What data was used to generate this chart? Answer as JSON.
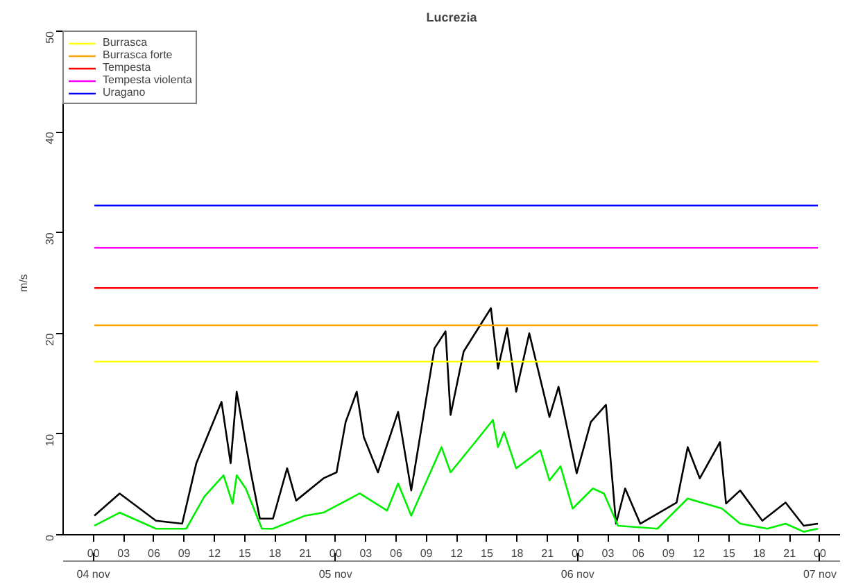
{
  "chart_data": {
    "type": "line",
    "title": "Lucrezia",
    "ylabel": "m/s",
    "xlim": [
      -3,
      74
    ],
    "ylim": [
      0,
      50
    ],
    "xticks": [
      {
        "value": 0,
        "label": "00"
      },
      {
        "value": 3,
        "label": "03"
      },
      {
        "value": 6,
        "label": "06"
      },
      {
        "value": 9,
        "label": "09"
      },
      {
        "value": 12,
        "label": "12"
      },
      {
        "value": 15,
        "label": "15"
      },
      {
        "value": 18,
        "label": "18"
      },
      {
        "value": 21,
        "label": "21"
      },
      {
        "value": 24,
        "label": "00"
      },
      {
        "value": 27,
        "label": "03"
      },
      {
        "value": 30,
        "label": "06"
      },
      {
        "value": 33,
        "label": "09"
      },
      {
        "value": 36,
        "label": "12"
      },
      {
        "value": 39,
        "label": "15"
      },
      {
        "value": 42,
        "label": "18"
      },
      {
        "value": 45,
        "label": "21"
      },
      {
        "value": 48,
        "label": "00"
      },
      {
        "value": 51,
        "label": "03"
      },
      {
        "value": 54,
        "label": "06"
      },
      {
        "value": 57,
        "label": "09"
      },
      {
        "value": 60,
        "label": "12"
      },
      {
        "value": 63,
        "label": "15"
      },
      {
        "value": 66,
        "label": "18"
      },
      {
        "value": 69,
        "label": "21"
      },
      {
        "value": 72,
        "label": "00"
      }
    ],
    "annotations": [
      "04 nov",
      "05 nov",
      "06 nov",
      "07 nov"
    ],
    "yticks": [
      0,
      10,
      20,
      30,
      40,
      50
    ],
    "series": [
      {
        "color": "#000000",
        "x": [
          0.1,
          2.6,
          6.2,
          8.8,
          10.2,
          12.7,
          13.6,
          14.2,
          15.6,
          16.5,
          17.8,
          19.2,
          20.1,
          22.8,
          24.1,
          25,
          26.1,
          26.8,
          28.2,
          30.2,
          31.5,
          33.1,
          33.8,
          34.9,
          35.4,
          36.7,
          39.4,
          40.1,
          41,
          41.9,
          43.2,
          45.2,
          46.1,
          47.9,
          49.3,
          50.8,
          51.8,
          52.7,
          54.2,
          57.8,
          58.9,
          60.1,
          62.1,
          62.7,
          64.1,
          66.3,
          68.6,
          70.4,
          71.8
        ],
        "values": [
          1.9,
          4.1,
          1.4,
          1.1,
          7.1,
          13.2,
          7.1,
          14.2,
          6.2,
          1.6,
          1.6,
          6.6,
          3.4,
          5.6,
          6.2,
          11.2,
          14.2,
          9.7,
          6.2,
          12.2,
          4.4,
          14.2,
          18.5,
          20.2,
          11.9,
          18.2,
          22.5,
          16.5,
          20.5,
          14.2,
          20,
          11.7,
          14.7,
          6.1,
          11.2,
          12.9,
          1.1,
          4.6,
          1.1,
          3.2,
          8.7,
          5.6,
          9.2,
          3.1,
          4.4,
          1.4,
          3.2,
          0.9,
          1.1
        ]
      },
      {
        "color": "#00ee00",
        "x": [
          0.1,
          2.6,
          6.2,
          9.2,
          11,
          12.9,
          13.8,
          14.2,
          15.1,
          16.7,
          17.8,
          21,
          22.8,
          26.4,
          29.1,
          30.2,
          31.5,
          34.5,
          35.4,
          37.6,
          39.6,
          40.1,
          40.7,
          41.9,
          44.3,
          45.2,
          46.3,
          47.5,
          49.5,
          50.6,
          52,
          55.9,
          58.9,
          62.3,
          64.1,
          66.8,
          68.6,
          70.4,
          71.8
        ],
        "values": [
          0.9,
          2.2,
          0.6,
          0.6,
          3.8,
          5.9,
          3.1,
          5.9,
          4.6,
          0.6,
          0.6,
          1.9,
          2.2,
          4.1,
          2.4,
          5.1,
          1.9,
          8.7,
          6.2,
          8.9,
          11.4,
          8.7,
          10.2,
          6.6,
          8.4,
          5.4,
          6.8,
          2.6,
          4.6,
          4.1,
          0.9,
          0.6,
          3.6,
          2.6,
          1.1,
          0.6,
          1.1,
          0.3,
          0.6
        ]
      }
    ],
    "ref_lines": [
      {
        "axis": "y",
        "value": 17.2,
        "label": "Burrasca",
        "color": "#ffff00"
      },
      {
        "axis": "y",
        "value": 20.8,
        "label": "Burrasca forte",
        "color": "#ffa500"
      },
      {
        "axis": "y",
        "value": 24.5,
        "label": "Tempesta",
        "color": "#ff0000"
      },
      {
        "axis": "y",
        "value": 28.5,
        "label": "Tempesta violenta",
        "color": "#ff00ff"
      },
      {
        "axis": "y",
        "value": 32.7,
        "label": "Uragano",
        "color": "#0000ff"
      }
    ],
    "legend": "top left",
    "grid": false
  }
}
